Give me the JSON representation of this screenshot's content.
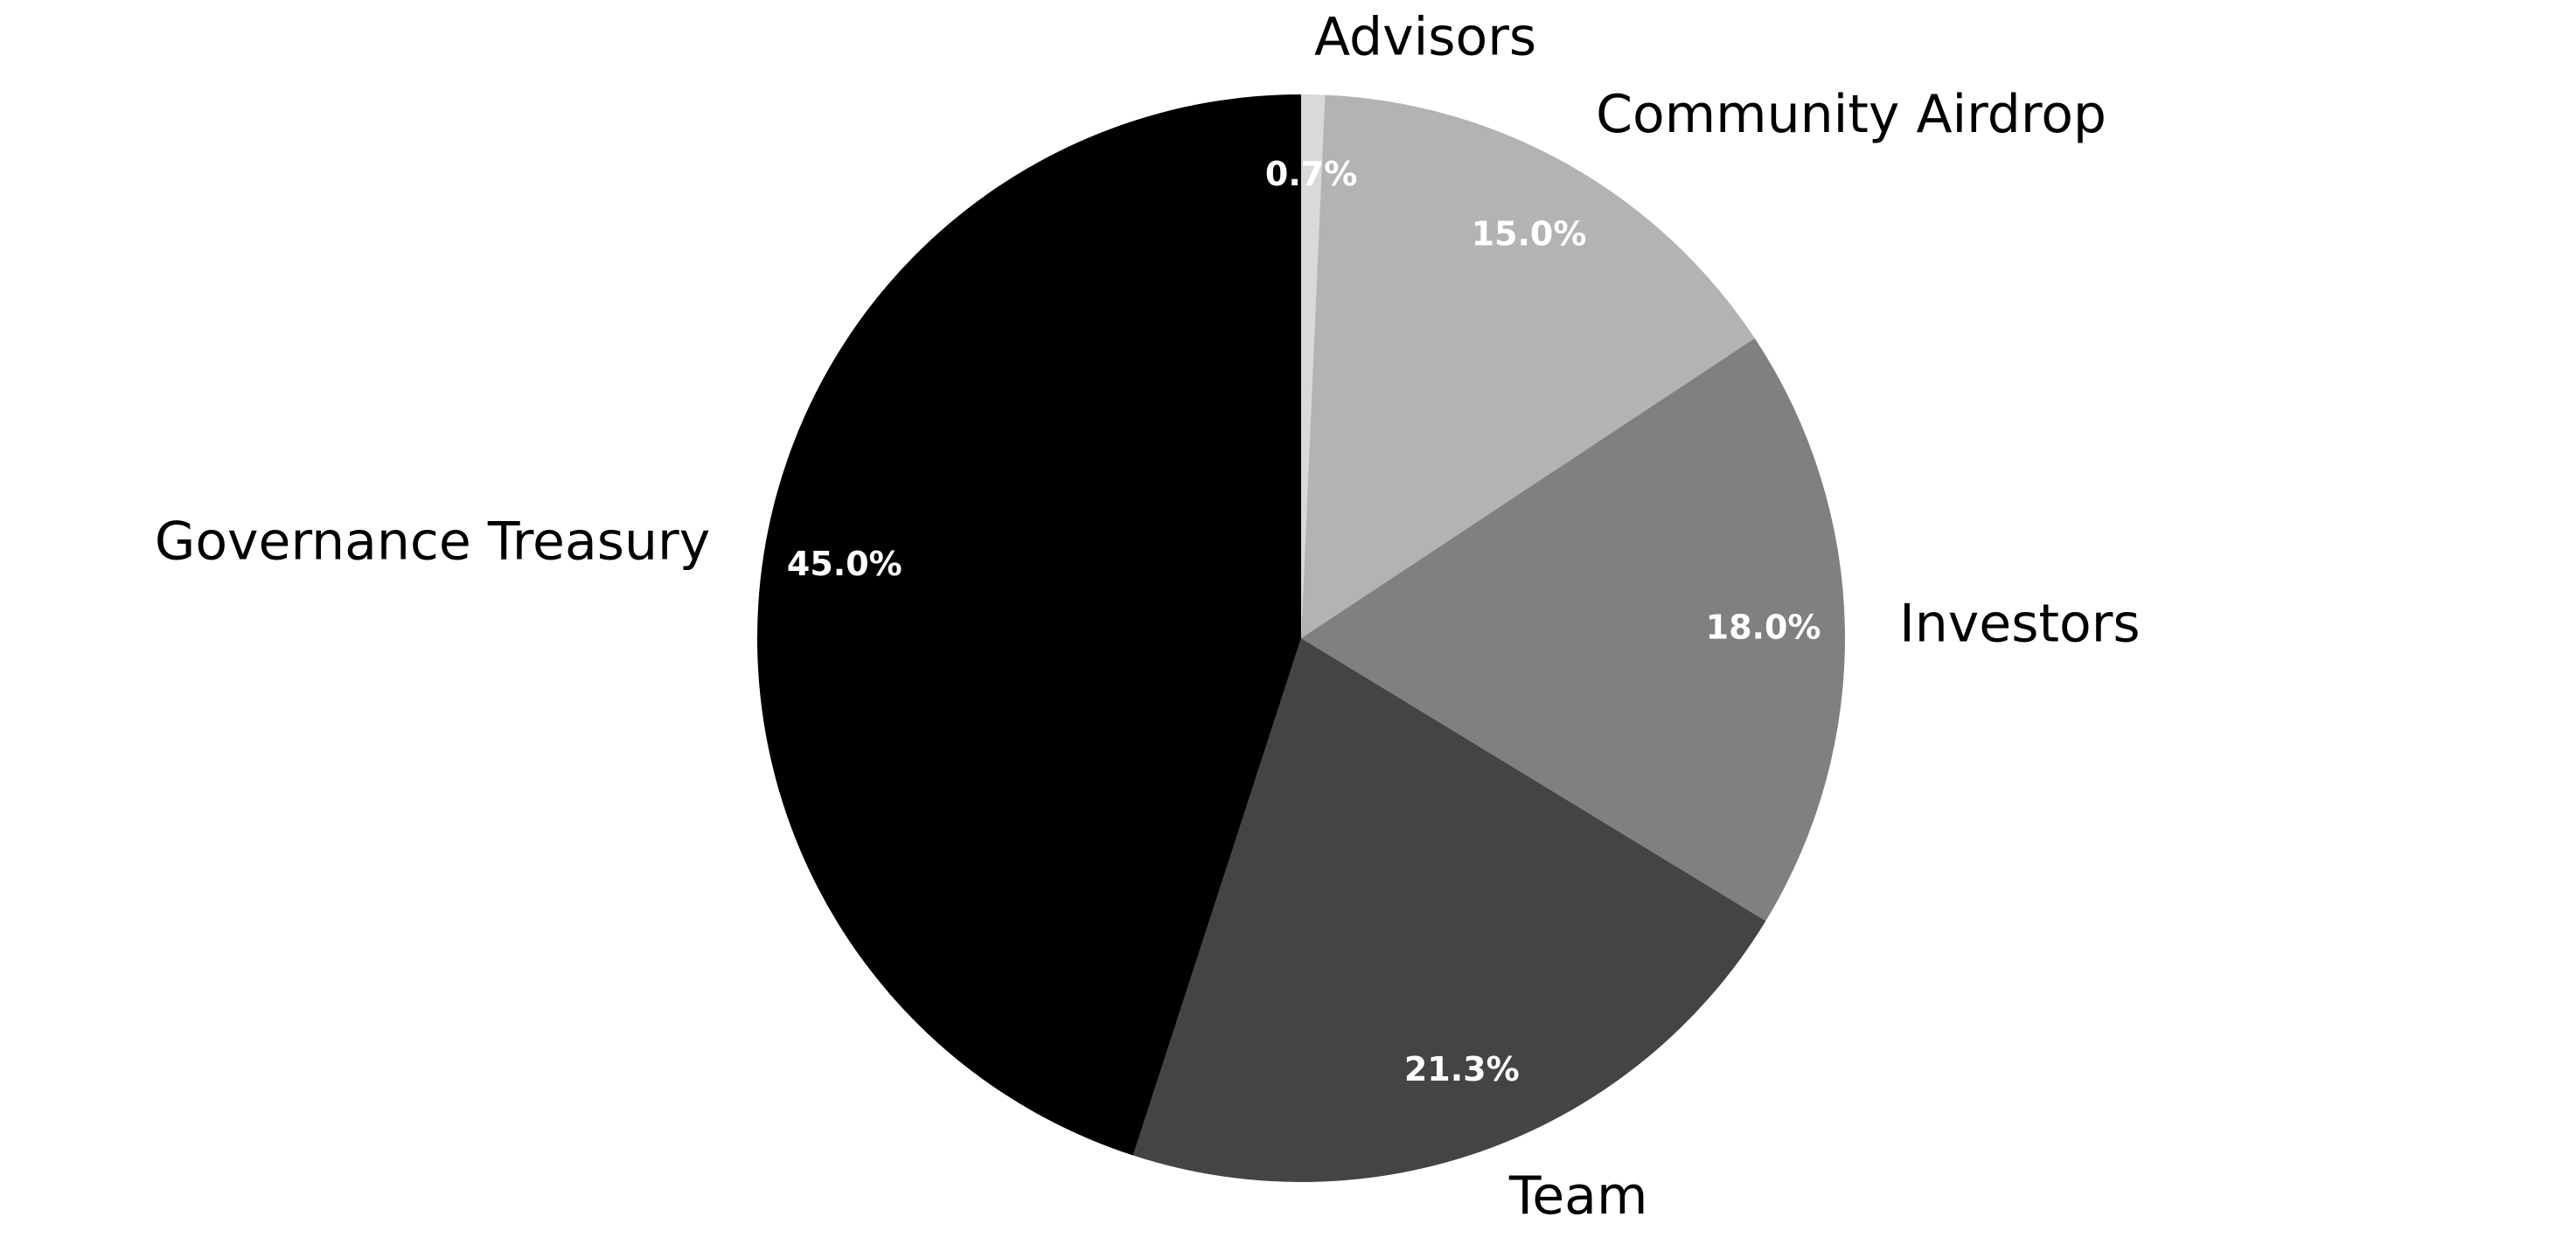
{
  "chart_data": {
    "type": "pie",
    "categories": [
      "Advisors",
      "Community Airdrop",
      "Investors",
      "Team",
      "Governance Treasury"
    ],
    "values": [
      0.7,
      15.0,
      18.0,
      21.3,
      45.0
    ],
    "value_labels": [
      "0.7%",
      "15.0%",
      "18.0%",
      "21.3%",
      "45.0%"
    ],
    "colors": [
      "#d9d9d9",
      "#b3b3b3",
      "#808080",
      "#444444",
      "#000000"
    ]
  }
}
